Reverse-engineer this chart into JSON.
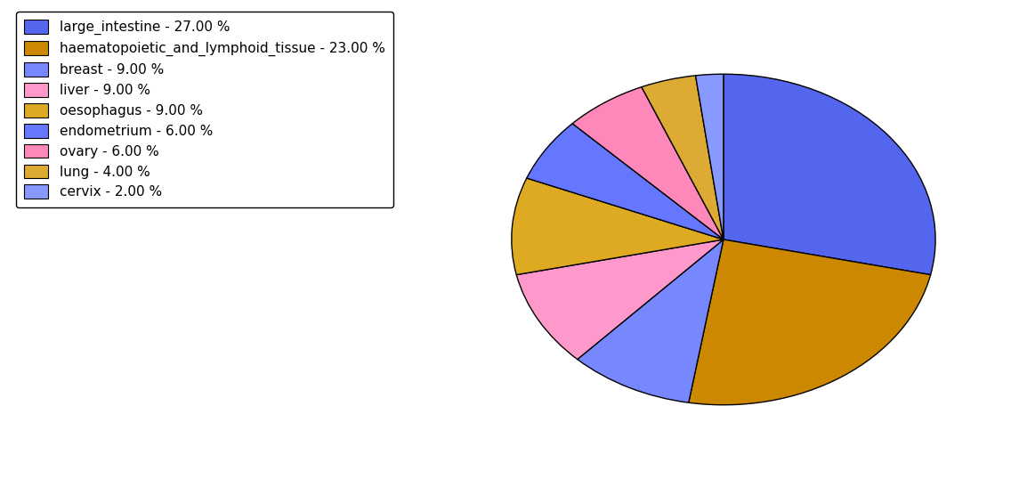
{
  "labels": [
    "large_intestine",
    "haematopoietic_and_lymphoid_tissue",
    "breast",
    "liver",
    "oesophagus",
    "endometrium",
    "ovary",
    "lung",
    "cervix"
  ],
  "values": [
    27.0,
    23.0,
    9.0,
    9.0,
    9.0,
    6.0,
    6.0,
    4.0,
    2.0
  ],
  "colors": [
    "#5566ee",
    "#cc8800",
    "#7788ff",
    "#ff99cc",
    "#ddaa22",
    "#6677ff",
    "#ff88bb",
    "#ddaa33",
    "#8899ff"
  ],
  "legend_labels": [
    "large_intestine - 27.00 %",
    "haematopoietic_and_lymphoid_tissue - 23.00 %",
    "breast - 9.00 %",
    "liver - 9.00 %",
    "oesophagus - 9.00 %",
    "endometrium - 6.00 %",
    "ovary - 6.00 %",
    "lung - 4.00 %",
    "cervix - 2.00 %"
  ],
  "startangle": 90,
  "figsize": [
    11.45,
    5.38
  ],
  "dpi": 100,
  "legend_fontsize": 11
}
